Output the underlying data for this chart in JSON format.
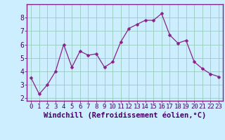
{
  "x": [
    0,
    1,
    2,
    3,
    4,
    5,
    6,
    7,
    8,
    9,
    10,
    11,
    12,
    13,
    14,
    15,
    16,
    17,
    18,
    19,
    20,
    21,
    22,
    23
  ],
  "y": [
    3.5,
    2.3,
    3.0,
    4.0,
    6.0,
    4.3,
    5.5,
    5.2,
    5.3,
    4.3,
    4.7,
    6.2,
    7.2,
    7.5,
    7.8,
    7.8,
    8.3,
    6.7,
    6.1,
    6.3,
    4.7,
    4.2,
    3.8,
    3.6
  ],
  "xlabel": "Windchill (Refroidissement éolien,°C)",
  "ylim": [
    1.8,
    9.0
  ],
  "xlim": [
    -0.5,
    23.5
  ],
  "yticks": [
    2,
    3,
    4,
    5,
    6,
    7,
    8
  ],
  "line_color": "#882288",
  "marker_color": "#882288",
  "bg_color": "#cceeff",
  "grid_color": "#99ccbb",
  "xlabel_fontsize": 7.5,
  "tick_fontsize": 6.5
}
